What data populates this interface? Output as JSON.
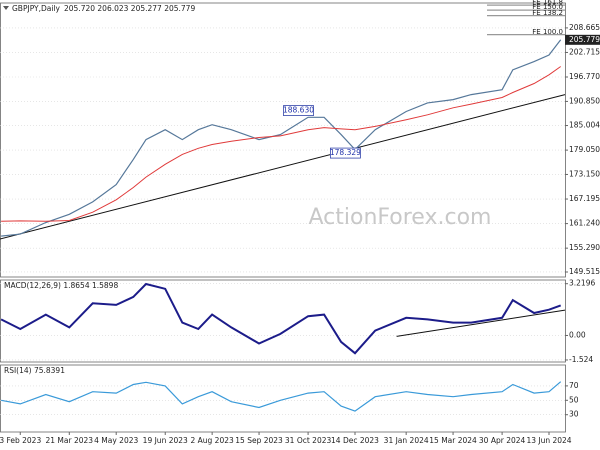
{
  "chart_data": [
    {
      "type": "line",
      "title": "GBPJPY,Daily",
      "subtitle": "205.720 206.023 205.277 205.779",
      "watermark": "ActionForex.com",
      "xlim": [
        "2023-01-15",
        "2024-06-28"
      ],
      "x": [
        "2023-01-16",
        "2023-02-03",
        "2023-02-27",
        "2023-03-21",
        "2023-04-12",
        "2023-05-04",
        "2023-05-20",
        "2023-06-01",
        "2023-06-19",
        "2023-07-05",
        "2023-07-20",
        "2023-08-02",
        "2023-08-20",
        "2023-09-15",
        "2023-10-05",
        "2023-10-31",
        "2023-11-15",
        "2023-12-01",
        "2023-12-14",
        "2024-01-02",
        "2024-01-31",
        "2024-02-20",
        "2024-03-15",
        "2024-04-01",
        "2024-04-30",
        "2024-05-10",
        "2024-05-30",
        "2024-06-13",
        "2024-06-24"
      ],
      "series": [
        {
          "color": "#56789a",
          "values": [
            158.2,
            158.7,
            161.5,
            163.5,
            166.5,
            170.7,
            176.8,
            181.6,
            184.0,
            181.6,
            184.0,
            185.2,
            184.0,
            181.6,
            182.8,
            187.0,
            187.0,
            182.8,
            179.2,
            184.0,
            188.4,
            190.5,
            191.3,
            192.5,
            193.7,
            198.5,
            200.5,
            202.1,
            205.779
          ]
        },
        {
          "color": "#e03a3a",
          "values": [
            161.8,
            161.9,
            161.8,
            162.0,
            164.0,
            167.0,
            170.0,
            172.5,
            175.6,
            178.0,
            179.5,
            180.4,
            181.2,
            182.1,
            182.5,
            184.0,
            184.5,
            184.2,
            184.0,
            184.8,
            186.4,
            187.6,
            189.3,
            190.2,
            191.8,
            193.0,
            195.2,
            197.3,
            199.3
          ]
        }
      ],
      "trendlines": [
        {
          "color": "#111111",
          "x": [
            "2023-01-15",
            "2024-06-28"
          ],
          "values": [
            157.5,
            192.5
          ]
        }
      ],
      "annotations": [
        {
          "x": "2023-10-22",
          "value": 188.63,
          "label": "188.630"
        },
        {
          "x": "2023-12-05",
          "value": 178.329,
          "label": "178.329"
        }
      ],
      "fib_levels": [
        {
          "value": 214.2,
          "label": "FE 161.8"
        },
        {
          "value": 213.0,
          "label": "FE 150.0"
        },
        {
          "value": 211.6,
          "label": "FE 138.2"
        },
        {
          "value": 207.0,
          "label": "FE 100.0"
        }
      ],
      "ylim": [
        148.3,
        214.7
      ],
      "yticks": [
        {
          "value": 149.515,
          "label": "149.515"
        },
        {
          "value": 155.29,
          "label": "155.290"
        },
        {
          "value": 161.24,
          "label": "161.240"
        },
        {
          "value": 167.195,
          "label": "167.195"
        },
        {
          "value": 173.15,
          "label": "173.150"
        },
        {
          "value": 179.05,
          "label": "179.050"
        },
        {
          "value": 185.004,
          "label": "185.004"
        },
        {
          "value": 190.85,
          "label": "190.850"
        },
        {
          "value": 196.77,
          "label": "196.770"
        },
        {
          "value": 202.715,
          "label": "202.715"
        },
        {
          "value": 208.665,
          "label": "208.665"
        }
      ],
      "grid": true
    },
    {
      "type": "line",
      "title": "MACD(12,26,9) 1.8654 1.5898",
      "xlim": [
        "2023-01-15",
        "2024-06-28"
      ],
      "x": [
        "2023-01-16",
        "2023-02-03",
        "2023-02-27",
        "2023-03-21",
        "2023-04-12",
        "2023-05-04",
        "2023-05-20",
        "2023-06-01",
        "2023-06-19",
        "2023-07-05",
        "2023-07-20",
        "2023-08-02",
        "2023-08-20",
        "2023-09-15",
        "2023-10-05",
        "2023-10-31",
        "2023-11-15",
        "2023-12-01",
        "2023-12-14",
        "2024-01-02",
        "2024-01-31",
        "2024-02-20",
        "2024-03-15",
        "2024-04-01",
        "2024-04-30",
        "2024-05-10",
        "2024-05-30",
        "2024-06-13",
        "2024-06-24"
      ],
      "series": [
        {
          "color": "#1c1c8a",
          "values": [
            1.0,
            0.4,
            1.3,
            0.5,
            2.0,
            1.9,
            2.4,
            3.2,
            2.9,
            0.8,
            0.4,
            1.3,
            0.5,
            -0.5,
            0.1,
            1.2,
            1.3,
            -0.4,
            -1.1,
            0.3,
            1.1,
            1.0,
            0.8,
            0.8,
            1.1,
            2.2,
            1.4,
            1.6,
            1.87
          ]
        }
      ],
      "trendlines": [
        {
          "color": "#111111",
          "x": [
            "2024-01-22",
            "2024-06-28"
          ],
          "values": [
            -0.06,
            1.58
          ]
        }
      ],
      "ylim": [
        -1.65,
        3.45
      ],
      "yticks": [
        -1.524,
        {
          "value": 0,
          "label": "0.00"
        },
        3.2196
      ],
      "grid": true
    },
    {
      "type": "line",
      "title": "RSI(14) 75.8391",
      "xlim": [
        "2023-01-15",
        "2024-06-28"
      ],
      "x": [
        "2023-01-16",
        "2023-02-03",
        "2023-02-27",
        "2023-03-21",
        "2023-04-12",
        "2023-05-04",
        "2023-05-20",
        "2023-06-01",
        "2023-06-19",
        "2023-07-05",
        "2023-07-20",
        "2023-08-02",
        "2023-08-20",
        "2023-09-15",
        "2023-10-05",
        "2023-10-31",
        "2023-11-15",
        "2023-12-01",
        "2023-12-14",
        "2024-01-02",
        "2024-01-31",
        "2024-02-20",
        "2024-03-15",
        "2024-04-01",
        "2024-04-30",
        "2024-05-10",
        "2024-05-30",
        "2024-06-13",
        "2024-06-24"
      ],
      "series": [
        {
          "color": "#3a9ad9",
          "values": [
            50,
            45,
            58,
            48,
            62,
            60,
            72,
            75,
            70,
            45,
            55,
            62,
            48,
            40,
            50,
            60,
            62,
            42,
            35,
            55,
            62,
            58,
            55,
            58,
            62,
            72,
            60,
            62,
            75.84
          ]
        }
      ],
      "ylim": [
        6,
        99
      ],
      "yticks": [
        30,
        50,
        70
      ],
      "grid": true,
      "xticks": [
        {
          "value": "2023-02-03",
          "label": "3 Feb 2023"
        },
        {
          "value": "2023-03-21",
          "label": "21 Mar 2023"
        },
        {
          "value": "2023-05-04",
          "label": "4 May 2023"
        },
        {
          "value": "2023-06-19",
          "label": "19 Jun 2023"
        },
        {
          "value": "2023-08-02",
          "label": "2 Aug 2023"
        },
        {
          "value": "2023-09-15",
          "label": "15 Sep 2023"
        },
        {
          "value": "2023-10-31",
          "label": "31 Oct 2023"
        },
        {
          "value": "2023-12-14",
          "label": "14 Dec 2023"
        },
        {
          "value": "2024-01-31",
          "label": "31 Jan 2024"
        },
        {
          "value": "2024-03-15",
          "label": "15 Mar 2024"
        },
        {
          "value": "2024-04-30",
          "label": "30 Apr 2024"
        },
        {
          "value": "2024-06-13",
          "label": "13 Jun 2024"
        }
      ]
    }
  ]
}
